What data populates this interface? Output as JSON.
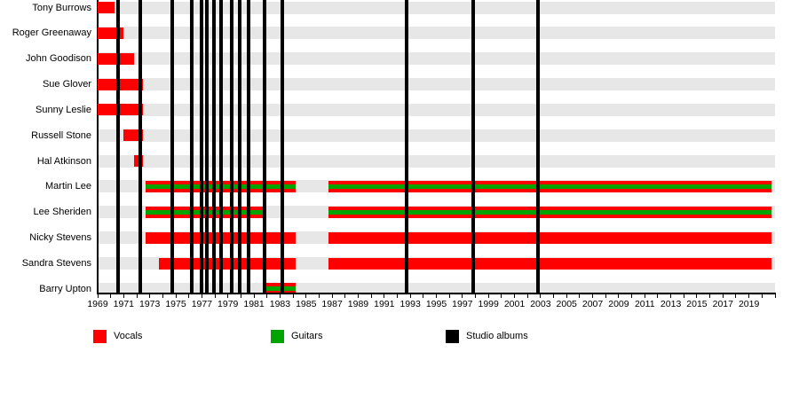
{
  "chart_data": {
    "type": "timeline",
    "description": "Band members timeline (gantt-style) with studio album release markers",
    "x_axis": {
      "min": 1969,
      "max": 2021,
      "tick_interval": 1,
      "label_interval": 2,
      "tick_labels": [
        "1969",
        "1971",
        "1973",
        "1975",
        "1977",
        "1979",
        "1981",
        "1983",
        "1985",
        "1987",
        "1989",
        "1991",
        "1993",
        "1995",
        "1997",
        "1999",
        "2001",
        "2003",
        "2005",
        "2007",
        "2009",
        "2011",
        "2013",
        "2015",
        "2017",
        "2019"
      ]
    },
    "members": [
      {
        "name": "Tony Burrows",
        "vocals": [
          [
            1969.0,
            1970.3
          ]
        ],
        "guitars": []
      },
      {
        "name": "Roger Greenaway",
        "vocals": [
          [
            1969.0,
            1971.0
          ]
        ],
        "guitars": []
      },
      {
        "name": "John Goodison",
        "vocals": [
          [
            1969.0,
            1971.8
          ]
        ],
        "guitars": []
      },
      {
        "name": "Sue Glover",
        "vocals": [
          [
            1969.0,
            1972.5
          ]
        ],
        "guitars": []
      },
      {
        "name": "Sunny Leslie",
        "vocals": [
          [
            1969.0,
            1972.5
          ]
        ],
        "guitars": []
      },
      {
        "name": "Russell Stone",
        "vocals": [
          [
            1971.0,
            1972.5
          ]
        ],
        "guitars": []
      },
      {
        "name": "Hal Atkinson",
        "vocals": [
          [
            1971.8,
            1972.5
          ]
        ],
        "guitars": []
      },
      {
        "name": "Martin Lee",
        "vocals": [
          [
            1972.7,
            1984.2
          ],
          [
            1986.7,
            2020.7
          ]
        ],
        "guitars": [
          [
            1972.7,
            1984.2
          ],
          [
            1986.7,
            2020.7
          ]
        ]
      },
      {
        "name": "Lee Sheriden",
        "vocals": [
          [
            1972.7,
            1981.9
          ],
          [
            1986.7,
            2020.7
          ]
        ],
        "guitars": [
          [
            1972.7,
            1981.9
          ],
          [
            1986.7,
            2020.7
          ]
        ]
      },
      {
        "name": "Nicky Stevens",
        "vocals": [
          [
            1972.7,
            1984.2
          ],
          [
            1986.7,
            2020.7
          ]
        ],
        "guitars": []
      },
      {
        "name": "Sandra Stevens",
        "vocals": [
          [
            1973.7,
            1984.2
          ],
          [
            1986.7,
            2020.7
          ]
        ],
        "guitars": []
      },
      {
        "name": "Barry Upton",
        "vocals": [
          [
            1981.9,
            1984.2
          ]
        ],
        "guitars": [
          [
            1981.9,
            1984.2
          ]
        ]
      }
    ],
    "studio_album_markers_years": [
      1970.6,
      1972.3,
      1974.7,
      1976.2,
      1977.0,
      1977.4,
      1977.9,
      1978.5,
      1979.3,
      1979.9,
      1980.6,
      1981.8,
      1983.2,
      1992.7,
      1997.8,
      2002.8
    ],
    "colors": {
      "vocals": "#ff0000",
      "guitars": "#00a400",
      "studio_albums": "#000000",
      "row_band": "#e7e7e7"
    }
  },
  "legend": {
    "items": [
      {
        "label": "Vocals",
        "color": "#ff0000"
      },
      {
        "label": "Guitars",
        "color": "#00a400"
      },
      {
        "label": "Studio albums",
        "color": "#000000"
      }
    ]
  }
}
